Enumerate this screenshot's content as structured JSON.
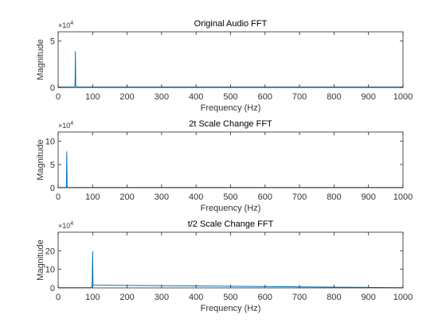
{
  "chart_data": [
    {
      "type": "line",
      "title": "Original Audio FFT",
      "xlabel": "Frequency (Hz)",
      "ylabel": "Magnitude",
      "xlim": [
        0,
        1000
      ],
      "ylim": [
        0,
        6
      ],
      "x_ticks": [
        0,
        100,
        200,
        300,
        400,
        500,
        600,
        700,
        800,
        900,
        1000
      ],
      "y_ticks": [
        0,
        5
      ],
      "y_exponent_label": "×10",
      "y_exponent": "4",
      "grid": false,
      "series": [
        {
          "x": [
            0,
            48,
            49,
            50,
            51,
            52,
            1000
          ],
          "y": [
            0.05,
            0.05,
            0.3,
            3.9,
            0.3,
            0.05,
            0.05
          ]
        }
      ]
    },
    {
      "type": "line",
      "title": "2t Scale Change FFT",
      "xlabel": "Frequency (Hz)",
      "ylabel": "Magnitude",
      "xlim": [
        0,
        1000
      ],
      "ylim": [
        0,
        12
      ],
      "x_ticks": [
        0,
        100,
        200,
        300,
        400,
        500,
        600,
        700,
        800,
        900,
        1000
      ],
      "y_ticks": [
        0,
        5,
        10
      ],
      "y_exponent_label": "×10",
      "y_exponent": "4",
      "grid": false,
      "series": [
        {
          "x": [
            0,
            23,
            24,
            25,
            26,
            27,
            1000
          ],
          "y": [
            0.05,
            0.05,
            0.5,
            7.8,
            0.5,
            0.05,
            0.05
          ]
        }
      ]
    },
    {
      "type": "line",
      "title": "t/2 Scale Change FFT",
      "xlabel": "Frequency (Hz)",
      "ylabel": "Magnitude",
      "xlim": [
        0,
        1000
      ],
      "ylim": [
        0,
        30
      ],
      "x_ticks": [
        0,
        100,
        200,
        300,
        400,
        500,
        600,
        700,
        800,
        900,
        1000
      ],
      "y_ticks": [
        0,
        10,
        20
      ],
      "y_exponent_label": "×10",
      "y_exponent": "4",
      "grid": false,
      "series": [
        {
          "x": [
            0,
            97,
            98,
            99,
            100,
            101,
            102,
            1000
          ],
          "y": [
            0.1,
            0.1,
            1.5,
            4,
            19.8,
            4,
            1.5,
            0.1
          ]
        }
      ]
    }
  ],
  "colors": {
    "line": "#0072BD",
    "axis": "#262626",
    "box": "#262626"
  }
}
